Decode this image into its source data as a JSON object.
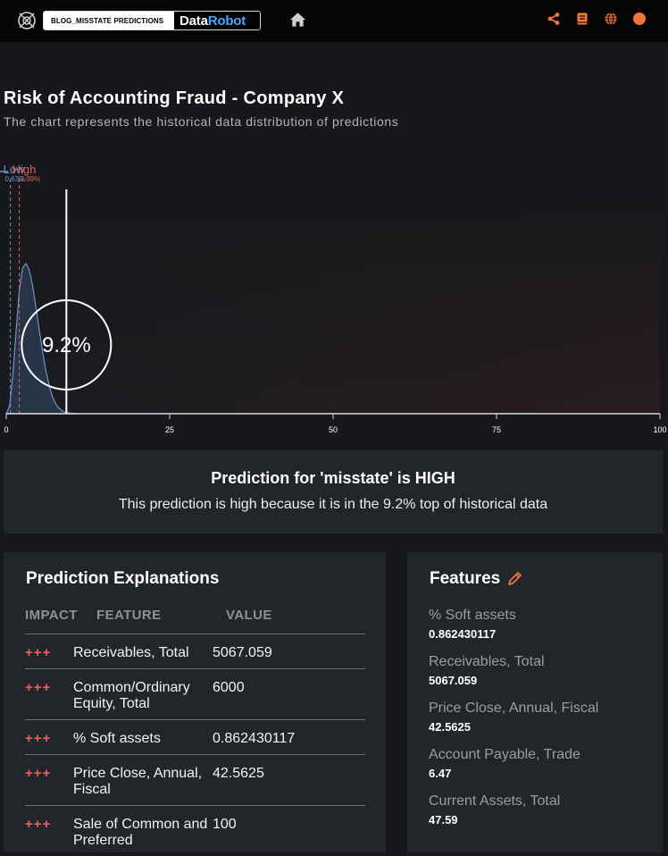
{
  "header": {
    "app_name": "BLOG_MISSTATE PREDICTIONS",
    "brand_part1": "Data",
    "brand_part2": "Robot",
    "icons": [
      "datarobot-logo-icon",
      "home-icon",
      "share-icon",
      "book-icon",
      "globe-icon",
      "user-avatar-icon"
    ],
    "accent_color": "#f0763a"
  },
  "page": {
    "title": "Risk of Accounting Fraud - Company X",
    "subtitle": "The chart represents the historical data distribution of predictions"
  },
  "chart_data": {
    "type": "area",
    "x_ticks": [
      "0",
      "25",
      "50",
      "75",
      "100"
    ],
    "xlim": [
      0,
      100
    ],
    "prediction_value": 9.2,
    "prediction_label": "9.2%",
    "thresholds": [
      {
        "label": "Low",
        "value_label": "0.63%",
        "value": 0.63,
        "color": "#6f93c8"
      },
      {
        "label": "High",
        "value_label": "1.99%",
        "value": 1.99,
        "color": "#d6605c"
      }
    ],
    "distribution_peak_x": 3,
    "distribution": [
      [
        0,
        0
      ],
      [
        0.5,
        0.05
      ],
      [
        1,
        0.25
      ],
      [
        1.5,
        0.55
      ],
      [
        2,
        0.82
      ],
      [
        2.5,
        0.97
      ],
      [
        3,
        1.0
      ],
      [
        3.5,
        0.96
      ],
      [
        4,
        0.86
      ],
      [
        4.5,
        0.72
      ],
      [
        5,
        0.57
      ],
      [
        5.5,
        0.43
      ],
      [
        6,
        0.3
      ],
      [
        6.5,
        0.2
      ],
      [
        7,
        0.12
      ],
      [
        7.5,
        0.07
      ],
      [
        8,
        0.04
      ],
      [
        8.5,
        0.02
      ],
      [
        9,
        0.01
      ],
      [
        10,
        0.003
      ],
      [
        11,
        0
      ]
    ]
  },
  "summary": {
    "headline": "Prediction for 'misstate' is HIGH",
    "detail": "This prediction is high because it is in the 9.2% top of historical data"
  },
  "explanations": {
    "title": "Prediction Explanations",
    "columns": [
      "IMPACT",
      "FEATURE",
      "VALUE"
    ],
    "rows": [
      {
        "impact": "+++",
        "feature": "Receivables, Total",
        "value": "5067.059"
      },
      {
        "impact": "+++",
        "feature": "Common/Ordinary Equity, Total",
        "value": "6000"
      },
      {
        "impact": "+++",
        "feature": "% Soft assets",
        "value": "0.862430117"
      },
      {
        "impact": "+++",
        "feature": "Price Close, Annual, Fiscal",
        "value": "42.5625"
      },
      {
        "impact": "+++",
        "feature": "Sale of Common and Preferred",
        "value": "100"
      }
    ]
  },
  "features": {
    "title": "Features",
    "items": [
      {
        "name": "% Soft assets",
        "value": "0.862430117"
      },
      {
        "name": "Receivables, Total",
        "value": "5067.059"
      },
      {
        "name": "Price Close, Annual, Fiscal",
        "value": "42.5625"
      },
      {
        "name": "Account Payable, Trade",
        "value": "6.47"
      },
      {
        "name": "Current Assets, Total",
        "value": "47.59"
      }
    ]
  }
}
